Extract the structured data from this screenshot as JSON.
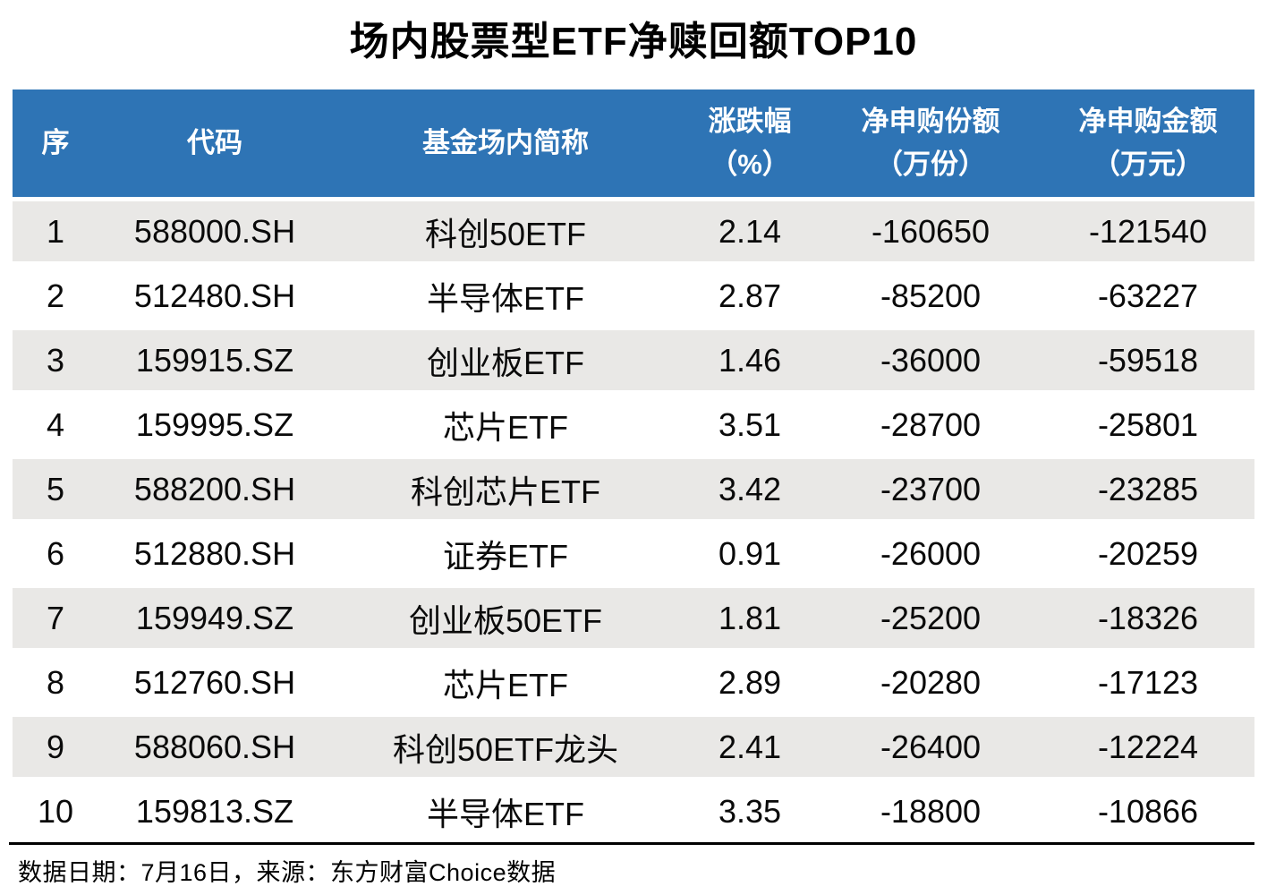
{
  "title": "场内股票型ETF净赎回额TOP10",
  "colors": {
    "header-bg": "#2E74B5",
    "stripe-bg": "#E9E8E6",
    "divider": "#000000"
  },
  "table": {
    "column_keys": [
      "rank",
      "code",
      "fund-name",
      "change-pct",
      "net-subscription-shares",
      "net-subscription-amount"
    ],
    "columns": [
      {
        "label": "序"
      },
      {
        "label": "代码"
      },
      {
        "label": "基金场内简称"
      },
      {
        "label": "涨跌幅\n（%）"
      },
      {
        "label": "净申购份额\n（万份）"
      },
      {
        "label": "净申购金额\n（万元）"
      }
    ],
    "rows": [
      [
        "1",
        "588000.SH",
        "科创50ETF",
        "2.14",
        "-160650",
        "-121540"
      ],
      [
        "2",
        "512480.SH",
        "半导体ETF",
        "2.87",
        "-85200",
        "-63227"
      ],
      [
        "3",
        "159915.SZ",
        "创业板ETF",
        "1.46",
        "-36000",
        "-59518"
      ],
      [
        "4",
        "159995.SZ",
        "芯片ETF",
        "3.51",
        "-28700",
        "-25801"
      ],
      [
        "5",
        "588200.SH",
        "科创芯片ETF",
        "3.42",
        "-23700",
        "-23285"
      ],
      [
        "6",
        "512880.SH",
        "证券ETF",
        "0.91",
        "-26000",
        "-20259"
      ],
      [
        "7",
        "159949.SZ",
        "创业板50ETF",
        "1.81",
        "-25200",
        "-18326"
      ],
      [
        "8",
        "512760.SH",
        "芯片ETF",
        "2.89",
        "-20280",
        "-17123"
      ],
      [
        "9",
        "588060.SH",
        "科创50ETF龙头",
        "2.41",
        "-26400",
        "-12224"
      ],
      [
        "10",
        "159813.SZ",
        "半导体ETF",
        "3.35",
        "-18800",
        "-10866"
      ]
    ]
  },
  "footer": {
    "note": "数据日期：7月16日，来源：东方财富Choice数据"
  }
}
